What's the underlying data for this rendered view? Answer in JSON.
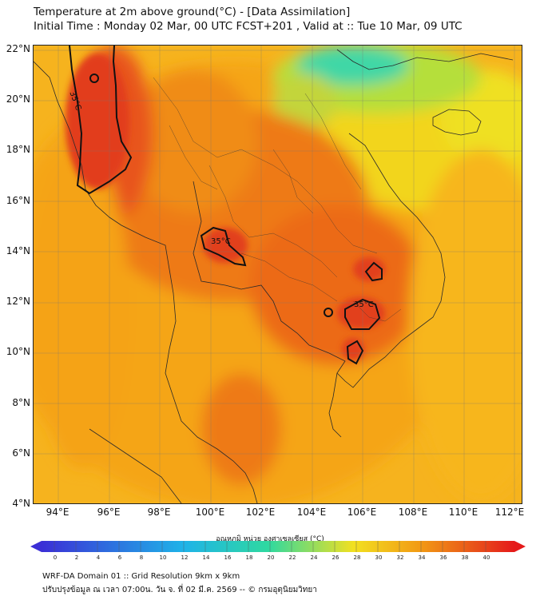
{
  "header": {
    "title": "Temperature at 2m above ground(°C) - [Data Assimilation]",
    "subtitle": "Initial Time : Monday 02 Mar, 00 UTC FCST+201 , Valid at :: Tue 10 Mar, 09 UTC"
  },
  "map": {
    "lat_labels": [
      "22°N",
      "20°N",
      "18°N",
      "16°N",
      "14°N",
      "12°N",
      "10°N",
      "8°N",
      "6°N",
      "4°N"
    ],
    "lon_labels": [
      "94°E",
      "96°E",
      "98°E",
      "100°E",
      "102°E",
      "104°E",
      "106°E",
      "108°E",
      "110°E",
      "112°E"
    ],
    "contour_labels": [
      "35°C",
      "35°C",
      "35°C"
    ],
    "region": {
      "lon_range": [
        93,
        112.3
      ],
      "lat_range": [
        4,
        22.2
      ]
    }
  },
  "colorbar": {
    "title": "อุณหภูมิ หน่วย องศาเซลเซียส (°C)",
    "ticks": [
      "0",
      "2",
      "4",
      "6",
      "8",
      "10",
      "12",
      "14",
      "16",
      "18",
      "20",
      "22",
      "24",
      "26",
      "28",
      "30",
      "32",
      "34",
      "36",
      "38",
      "40"
    ],
    "colors": {
      "cold": "#3b2fd6",
      "cool": "#1fb3e8",
      "mild": "#2fd9a0",
      "warm": "#f2e020",
      "hot": "#f29a14",
      "very_hot": "#e8501a",
      "extreme": "#e51a1a"
    }
  },
  "footer": {
    "line1": "WRF-DA Domain 01 :: Grid Resolution 9km x 9km",
    "line2": "ปรับปรุงข้อมูล ณ เวลา 07:00น. วัน จ. ที่ 02 มี.ค. 2569 -- © กรมอุตุนิยมวิทยา"
  }
}
